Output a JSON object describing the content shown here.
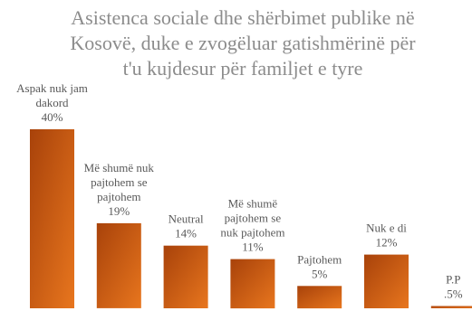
{
  "chart_data": {
    "type": "bar",
    "title_lines": [
      "Asistenca sociale dhe shërbimet publike në",
      "Kosovë, duke e zvogëluar gatishmërinë për",
      "t'u kujdesur për familjet e tyre"
    ],
    "categories": [
      "Aspak nuk jam dakord",
      "Më shumë nuk pajtohem se pajtohem",
      "Neutral",
      "Më shumë pajtohem se nuk pajtohem",
      "Pajtohem",
      "Nuk e di",
      "P.P"
    ],
    "label_lines": [
      [
        "Aspak nuk jam",
        "dakord"
      ],
      [
        "Më shumë nuk",
        "pajtohem se",
        "pajtohem"
      ],
      [
        "Neutral"
      ],
      [
        "Më shumë",
        "pajtohem se",
        "nuk pajtohem"
      ],
      [
        "Pajtohem"
      ],
      [
        "Nuk e di"
      ],
      [
        "P.P"
      ]
    ],
    "values": [
      40,
      19,
      14,
      11,
      5,
      12,
      0.5
    ],
    "value_labels": [
      "40%",
      "19%",
      "14%",
      "11%",
      "5%",
      "12%",
      ".5%"
    ],
    "ylim": [
      0,
      40
    ],
    "grid": false,
    "legend": "none",
    "colors": {
      "bar_dark": "#a8420a",
      "bar_light": "#e8761e",
      "title": "#8c8c8c",
      "label": "#595959"
    }
  }
}
